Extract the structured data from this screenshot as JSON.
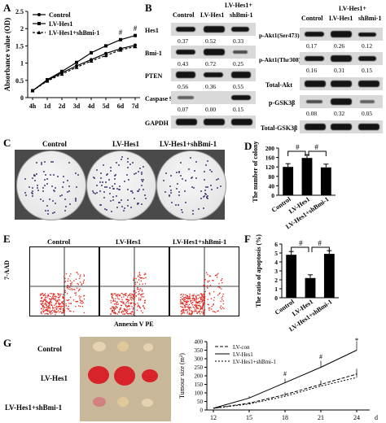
{
  "panels": {
    "a": "A",
    "b": "B",
    "c": "C",
    "d": "D",
    "e": "E",
    "f": "F",
    "g": "G"
  },
  "panelA": {
    "chart_data": {
      "type": "line",
      "ylabel": "Absorbance value (OD)",
      "categories": [
        "4h",
        "1d",
        "2d",
        "3d",
        "4d",
        "5d",
        "6d",
        "7d"
      ],
      "ylim": [
        0,
        2.5
      ],
      "yticks": [
        "0",
        "0.5",
        "1",
        "1.5",
        "2",
        "2.5"
      ],
      "series": [
        {
          "name": "Control",
          "values": [
            0.2,
            0.5,
            0.72,
            0.92,
            1.1,
            1.28,
            1.42,
            1.52
          ]
        },
        {
          "name": "LV-Hes1",
          "values": [
            0.2,
            0.52,
            0.76,
            1.02,
            1.3,
            1.5,
            1.68,
            1.8
          ]
        },
        {
          "name": "LV-Hes1+shBmi-1",
          "values": [
            0.2,
            0.48,
            0.68,
            0.88,
            1.06,
            1.22,
            1.38,
            1.48
          ]
        }
      ],
      "annotations": [
        "#",
        "#"
      ]
    }
  },
  "panelB": {
    "header_top": "LV-Hes1+",
    "cols": [
      "Control",
      "LV-Hes1",
      "shBmi-1"
    ],
    "rows": [
      {
        "label": "Hes1",
        "values": [
          "0.37",
          "0.52",
          "0.33"
        ]
      },
      {
        "label": "Bmi-1",
        "values": [
          "0.43",
          "0.72",
          "0.25"
        ]
      },
      {
        "label": "PTEN",
        "values": [
          "0.56",
          "0.36",
          "0.55"
        ]
      },
      {
        "label": "Caspase 9",
        "values": [
          "0.07",
          "0.00",
          "0.15"
        ]
      },
      {
        "label": "GAPDH",
        "values": []
      }
    ],
    "right_header_top": "LV-Hes1+",
    "right_cols": [
      "Control",
      "LV-Hes1",
      "shBmi-1"
    ],
    "right_rows": [
      {
        "label": "p-Akt1(Ser473)",
        "values": [
          "0.17",
          "0.26",
          "0.12"
        ]
      },
      {
        "label": "p-Akt1(Thr308)",
        "values": [
          "0.16",
          "0.31",
          "0.15"
        ]
      },
      {
        "label": "Total-Akt",
        "values": []
      },
      {
        "label": "p-GSK3β",
        "values": [
          "0.08",
          "0.32",
          "0.05"
        ]
      },
      {
        "label": "Total-GSK3β",
        "values": []
      }
    ]
  },
  "panelC": {
    "labels": [
      "Control",
      "LV-Hes1",
      "LV-Hes1+shBmi-1"
    ]
  },
  "panelD": {
    "chart_data": {
      "type": "bar",
      "ylabel": "The number of colony",
      "categories": [
        "Control",
        "LV-Hes1",
        "LV-Hes1+shBmi-1"
      ],
      "values": [
        120,
        158,
        118
      ],
      "ylim": [
        0,
        200
      ],
      "yticks": [
        "0",
        "40",
        "80",
        "120",
        "160",
        "200"
      ],
      "annotations": [
        "#",
        "#"
      ]
    }
  },
  "panelE": {
    "labels": [
      "Control",
      "LV-Hes1",
      "LV-Hes1+shBmi-1"
    ],
    "ylabel": "7-AAD",
    "xlabel": "Annexin V PE"
  },
  "panelF": {
    "chart_data": {
      "type": "bar",
      "ylabel": "The ratio of apoptosis (%)",
      "categories": [
        "Control",
        "LV-Hes1",
        "LV-Hes1+shBmi-1"
      ],
      "values": [
        4.8,
        2.2,
        4.9
      ],
      "ylim": [
        0,
        6
      ],
      "yticks": [
        "0",
        "1",
        "2",
        "3",
        "4",
        "5",
        "6"
      ],
      "annotations": [
        "#",
        "#"
      ]
    }
  },
  "panelG": {
    "labels": [
      "Control",
      "LV-Hes1",
      "LV-Hes1+shBmi-1"
    ],
    "chart_data": {
      "type": "line",
      "ylabel": "Tumour size (m²)",
      "xunit": "d",
      "categories": [
        "12",
        "15",
        "18",
        "21",
        "24"
      ],
      "ylim": [
        0,
        400
      ],
      "yticks": [
        "0",
        "50",
        "100",
        "150",
        "200",
        "250",
        "300",
        "350",
        "400"
      ],
      "series": [
        {
          "name": "LV-con",
          "values": [
            10,
            40,
            90,
            150,
            210
          ]
        },
        {
          "name": "LV-Hes1",
          "values": [
            10,
            70,
            160,
            250,
            350
          ]
        },
        {
          "name": "LV-Hes1+shBmi-1",
          "values": [
            10,
            35,
            80,
            140,
            190
          ]
        }
      ],
      "annotations": [
        "#",
        "#",
        "*"
      ]
    }
  }
}
